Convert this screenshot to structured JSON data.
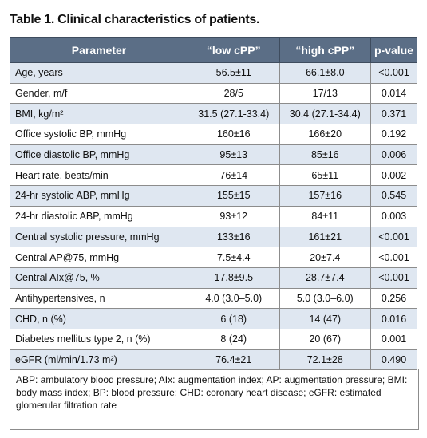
{
  "header": {
    "title": "Table 1. Clinical characteristics of patients."
  },
  "table": {
    "columns": [
      "Parameter",
      "“low cPP”",
      "“high cPP”",
      "p-value"
    ],
    "rows": [
      [
        "Age, years",
        "56.5±11",
        "66.1±8.0",
        "<0.001"
      ],
      [
        "Gender, m/f",
        "28/5",
        "17/13",
        "0.014"
      ],
      [
        "BMI, kg/m²",
        "31.5 (27.1-33.4)",
        "30.4 (27.1-34.4)",
        "0.371"
      ],
      [
        "Office systolic BP, mmHg",
        "160±16",
        "166±20",
        "0.192"
      ],
      [
        "Office diastolic BP, mmHg",
        "95±13",
        "85±16",
        "0.006"
      ],
      [
        "Heart rate, beats/min",
        "76±14",
        "65±11",
        "0.002"
      ],
      [
        "24-hr systolic ABP, mmHg",
        "155±15",
        "157±16",
        "0.545"
      ],
      [
        "24-hr diastolic ABP, mmHg",
        "93±12",
        "84±11",
        "0.003"
      ],
      [
        "Central systolic pressure, mmHg",
        "133±16",
        "161±21",
        "<0.001"
      ],
      [
        "Central AP@75, mmHg",
        "7.5±4.4",
        "20±7.4",
        "<0.001"
      ],
      [
        "Central AIx@75, %",
        "17.8±9.5",
        "28.7±7.4",
        "<0.001"
      ],
      [
        "Antihypertensives, n",
        "4.0 (3.0–5.0)",
        "5.0 (3.0–6.0)",
        "0.256"
      ],
      [
        "CHD, n (%)",
        "6 (18)",
        "14 (47)",
        "0.016"
      ],
      [
        "Diabetes mellitus type 2, n (%)",
        "8 (24)",
        "20 (67)",
        "0.001"
      ],
      [
        "eGFR (ml/min/1.73 m²)",
        "76.4±21",
        "72.1±28",
        "0.490"
      ]
    ]
  },
  "footnote": "ABP: ambulatory blood pressure; AIx: augmentation index; AP: augmentation pressure; BMI: body mass index; BP: blood pressure; CHD: coronary heart disease; eGFR: estimated glomerular filtration rate"
}
